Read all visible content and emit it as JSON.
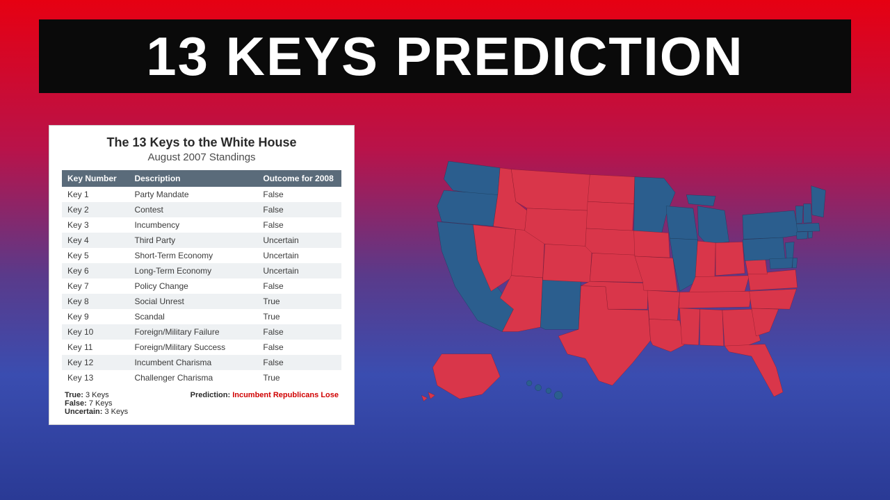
{
  "header": {
    "title": "13 KEYS PREDICTION",
    "title_fontsize": 78,
    "title_color": "#ffffff",
    "bg_color": "#0a0a0a"
  },
  "background": {
    "gradient_stops": [
      "#e60012",
      "#b8134a",
      "#5a3a8a",
      "#3a4db0",
      "#2a3a95"
    ]
  },
  "table": {
    "title": "The 13 Keys to the White House",
    "subtitle": "August 2007 Standings",
    "header_bg": "#5a6b7a",
    "header_text_color": "#ffffff",
    "row_even_bg": "#eef1f3",
    "row_odd_bg": "#ffffff",
    "font_size": 12,
    "columns": [
      "Key Number",
      "Description",
      "Outcome for 2008"
    ],
    "rows": [
      [
        "Key 1",
        "Party Mandate",
        "False"
      ],
      [
        "Key 2",
        "Contest",
        "False"
      ],
      [
        "Key 3",
        "Incumbency",
        "False"
      ],
      [
        "Key 4",
        "Third Party",
        "Uncertain"
      ],
      [
        "Key 5",
        "Short-Term Economy",
        "Uncertain"
      ],
      [
        "Key 6",
        "Long-Term Economy",
        "Uncertain"
      ],
      [
        "Key 7",
        "Policy Change",
        "False"
      ],
      [
        "Key 8",
        "Social Unrest",
        "True"
      ],
      [
        "Key 9",
        "Scandal",
        "True"
      ],
      [
        "Key 10",
        "Foreign/Military Failure",
        "False"
      ],
      [
        "Key 11",
        "Foreign/Military Success",
        "False"
      ],
      [
        "Key 12",
        "Incumbent Charisma",
        "False"
      ],
      [
        "Key 13",
        "Challenger Charisma",
        "True"
      ]
    ],
    "summary": {
      "true_label": "True:",
      "true_count": "3 Keys",
      "false_label": "False:",
      "false_count": "7 Keys",
      "uncertain_label": "Uncertain:",
      "uncertain_count": "3 Keys",
      "prediction_label": "Prediction:",
      "prediction_value": "Incumbent Republicans Lose",
      "prediction_color": "#d00000"
    }
  },
  "map": {
    "type": "choropleth",
    "red_color": "#d9364a",
    "blue_color": "#2b5e8e",
    "stroke_red": "#7a1525",
    "stroke_blue": "#153550",
    "blue_states": [
      "WA",
      "OR",
      "CA",
      "NM",
      "MN",
      "WI",
      "IL",
      "MI",
      "NY",
      "PA",
      "NJ",
      "CT",
      "RI",
      "MA",
      "VT",
      "NH",
      "ME",
      "DE",
      "MD",
      "DC",
      "HI"
    ],
    "red_states": [
      "ID",
      "MT",
      "ND",
      "SD",
      "WY",
      "NV",
      "UT",
      "CO",
      "AZ",
      "NE",
      "KS",
      "OK",
      "TX",
      "IA",
      "MO",
      "AR",
      "LA",
      "IN",
      "OH",
      "KY",
      "TN",
      "MS",
      "AL",
      "GA",
      "FL",
      "SC",
      "NC",
      "VA",
      "WV",
      "AK"
    ]
  }
}
